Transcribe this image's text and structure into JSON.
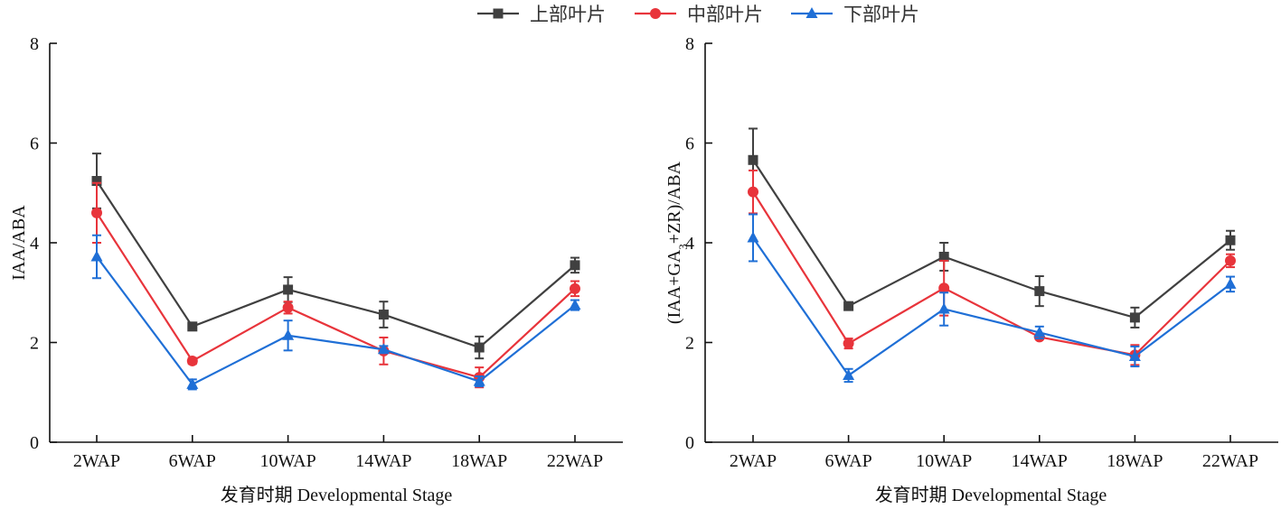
{
  "legend": {
    "position": "top-center",
    "items": [
      {
        "name": "上部叶片",
        "color": "#404040",
        "marker": "square"
      },
      {
        "name": "中部叶片",
        "color": "#e8343b",
        "marker": "circle"
      },
      {
        "name": "下部叶片",
        "color": "#1f6fd6",
        "marker": "triangle"
      }
    ]
  },
  "chart_data": [
    {
      "type": "line",
      "title": "",
      "xlabel": "发育时期 Developmental Stage",
      "ylabel": "IAA/ABA",
      "ylabel_parts": {
        "main": "IAA/ABA"
      },
      "ylim": [
        0,
        8
      ],
      "yticks": [
        0,
        2,
        4,
        6,
        8
      ],
      "categories": [
        "2WAP",
        "6WAP",
        "10WAP",
        "14WAP",
        "18WAP",
        "22WAP"
      ],
      "grid": false,
      "series": [
        {
          "name": "上部叶片",
          "values": [
            5.24,
            2.32,
            3.06,
            2.56,
            1.9,
            3.55
          ],
          "errors": [
            0.55,
            0.05,
            0.25,
            0.26,
            0.22,
            0.15
          ]
        },
        {
          "name": "中部叶片",
          "values": [
            4.6,
            1.63,
            2.7,
            1.83,
            1.3,
            3.08
          ],
          "errors": [
            0.6,
            0.06,
            0.12,
            0.27,
            0.2,
            0.15
          ]
        },
        {
          "name": "下部叶片",
          "values": [
            3.72,
            1.16,
            2.14,
            1.86,
            1.22,
            2.75
          ],
          "errors": [
            0.43,
            0.1,
            0.3,
            0.07,
            0.1,
            0.1
          ]
        }
      ]
    },
    {
      "type": "line",
      "title": "",
      "xlabel": "发育时期 Developmental Stage",
      "ylabel": "(IAA+GA3+ZR)/ABA",
      "ylim": [
        0,
        8
      ],
      "yticks": [
        0,
        2,
        4,
        6,
        8
      ],
      "categories": [
        "2WAP",
        "6WAP",
        "10WAP",
        "14WAP",
        "18WAP",
        "22WAP"
      ],
      "grid": false,
      "series": [
        {
          "name": "上部叶片",
          "values": [
            5.66,
            2.73,
            3.72,
            3.03,
            2.5,
            4.05
          ],
          "errors": [
            0.63,
            0.04,
            0.28,
            0.3,
            0.2,
            0.19
          ]
        },
        {
          "name": "中部叶片",
          "values": [
            5.02,
            1.98,
            3.09,
            2.11,
            1.75,
            3.64
          ],
          "errors": [
            0.43,
            0.1,
            0.55,
            0.04,
            0.2,
            0.13
          ]
        },
        {
          "name": "下部叶片",
          "values": [
            4.1,
            1.34,
            2.67,
            2.2,
            1.72,
            3.17
          ],
          "errors": [
            0.47,
            0.13,
            0.33,
            0.12,
            0.2,
            0.15
          ]
        }
      ]
    }
  ]
}
